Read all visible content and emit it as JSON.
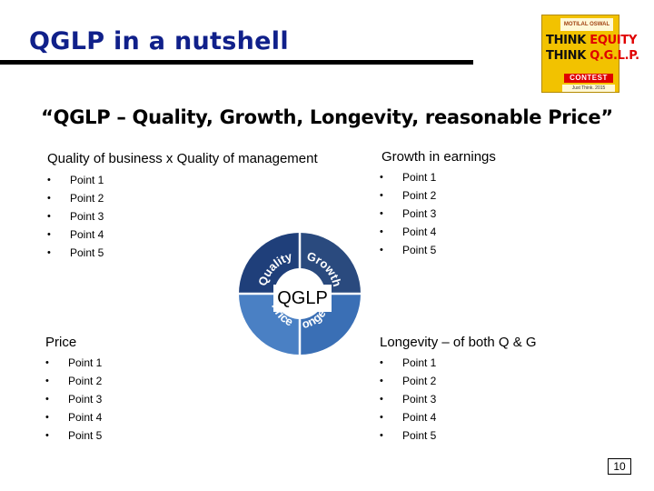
{
  "header": {
    "title": "QGLP in a nutshell"
  },
  "logo": {
    "brand": "MOTILAL OSWAL",
    "line1_black": "THINK",
    "line1_red": "EQUITY",
    "line2_black": "THINK",
    "line2_red": "Q.G.L.P.",
    "contest": "CONTEST",
    "sub": "Just Think. 2015"
  },
  "subtitle": "“QGLP – Quality, Growth, Longevity, reasonable Price”",
  "quadrants": {
    "quality": {
      "title": "Quality of business x Quality of management",
      "points": [
        "Point 1",
        "Point 2",
        "Point 3",
        "Point 4",
        "Point 5"
      ]
    },
    "growth": {
      "title": "Growth in earnings",
      "points": [
        "Point 1",
        "Point 2",
        "Point 3",
        "Point 4",
        "Point 5"
      ]
    },
    "price": {
      "title": "Price",
      "points": [
        "Point 1",
        "Point 2",
        "Point 3",
        "Point 4",
        "Point 5"
      ]
    },
    "longevity": {
      "title": "Longevity – of both Q & G",
      "points": [
        "Point 1",
        "Point 2",
        "Point 3",
        "Point 4",
        "Point 5"
      ]
    }
  },
  "wheel": {
    "center_label": "QGLP",
    "segments": [
      "Quality",
      "Growth",
      "Price",
      "Longevity"
    ],
    "colors": {
      "dark_blue": "#1f3f7a",
      "light_blue": "#3f78c0"
    }
  },
  "page_number": "10"
}
